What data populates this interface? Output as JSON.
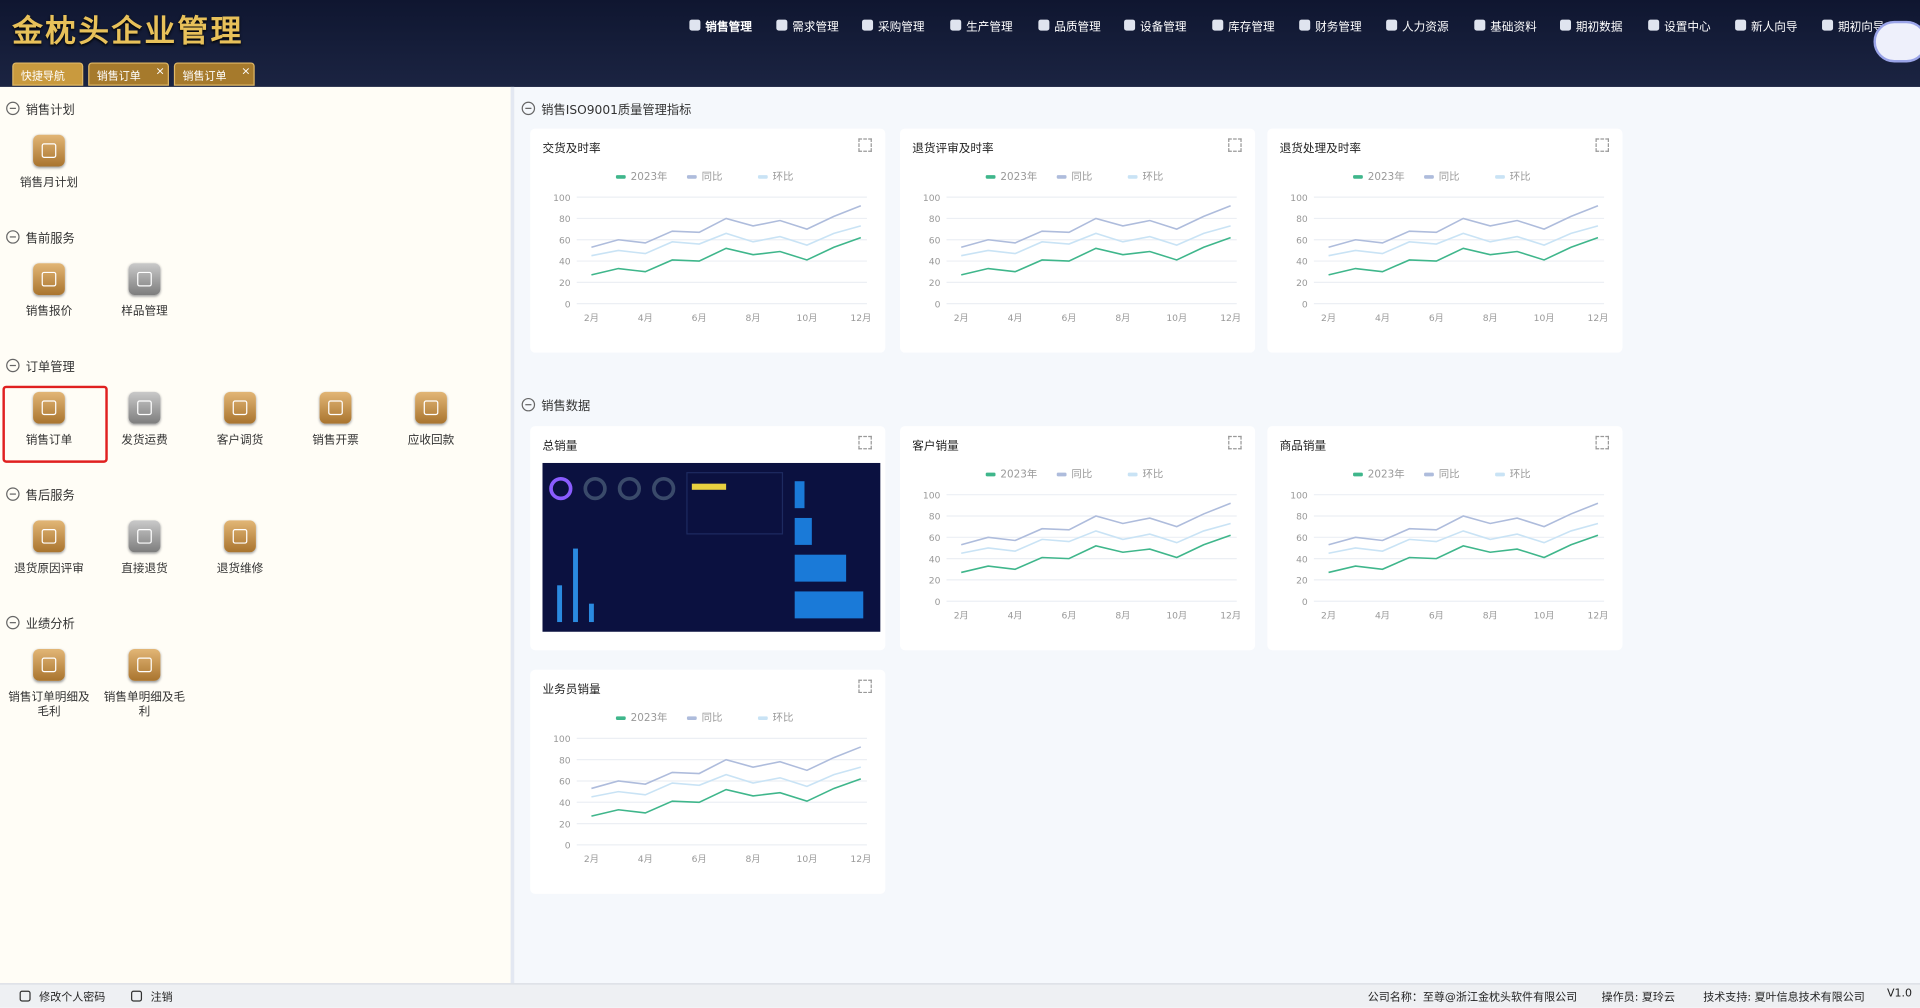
{
  "header": {
    "logo": "金枕头企业管理",
    "nav": [
      "销售管理",
      "需求管理",
      "采购管理",
      "生产管理",
      "品质管理",
      "设备管理",
      "库存管理",
      "财务管理",
      "人力资源",
      "基础资料",
      "期初数据",
      "设置中心",
      "新人向导",
      "期初向导"
    ]
  },
  "tabs": [
    "快捷导航",
    "销售订单",
    "销售订单"
  ],
  "sidebar": {
    "sections": [
      {
        "title": "销售计划",
        "items": [
          "销售月计划"
        ]
      },
      {
        "title": "售前服务",
        "items": [
          "销售报价",
          "样品管理"
        ]
      },
      {
        "title": "订单管理",
        "items": [
          "销售订单",
          "发货运费",
          "客户调货",
          "销售开票",
          "应收回款"
        ]
      },
      {
        "title": "售后服务",
        "items": [
          "退货原因评审",
          "直接退货",
          "退货维修"
        ]
      },
      {
        "title": "业绩分析",
        "items": [
          "销售订单明细及毛利",
          "销售单明细及毛利"
        ]
      }
    ]
  },
  "main": {
    "sections": [
      "销售ISO9001质量管理指标",
      "销售数据"
    ],
    "dashboard_title": "总销量"
  },
  "chart_data": [
    {
      "type": "line",
      "title": "交货及时率",
      "categories": [
        "2月",
        null,
        "4月",
        null,
        "6月",
        null,
        "8月",
        null,
        "10月",
        null,
        "12月"
      ],
      "ylim": [
        0,
        100
      ],
      "yticks": [
        0,
        20,
        40,
        60,
        80,
        100
      ],
      "grid": true,
      "series": [
        {
          "name": "2023年",
          "color": "#3fb68b",
          "values": [
            27,
            33,
            30,
            41,
            40,
            52,
            46,
            49,
            41,
            53,
            62
          ]
        },
        {
          "name": "同比",
          "color": "#aebcdc",
          "values": [
            53,
            60,
            57,
            68,
            67,
            80,
            73,
            78,
            70,
            82,
            92
          ]
        },
        {
          "name": "环比",
          "color": "#c9e3f5",
          "values": [
            45,
            50,
            47,
            58,
            56,
            66,
            58,
            63,
            55,
            66,
            73
          ]
        }
      ]
    },
    {
      "type": "line",
      "title": "退货评审及时率",
      "categories": [
        "2月",
        null,
        "4月",
        null,
        "6月",
        null,
        "8月",
        null,
        "10月",
        null,
        "12月"
      ],
      "ylim": [
        0,
        100
      ],
      "yticks": [
        0,
        20,
        40,
        60,
        80,
        100
      ],
      "grid": true,
      "series": [
        {
          "name": "2023年",
          "color": "#3fb68b",
          "values": [
            27,
            33,
            30,
            41,
            40,
            52,
            46,
            49,
            41,
            53,
            62
          ]
        },
        {
          "name": "同比",
          "color": "#aebcdc",
          "values": [
            53,
            60,
            57,
            68,
            67,
            80,
            73,
            78,
            70,
            82,
            92
          ]
        },
        {
          "name": "环比",
          "color": "#c9e3f5",
          "values": [
            45,
            50,
            47,
            58,
            56,
            66,
            58,
            63,
            55,
            66,
            73
          ]
        }
      ]
    },
    {
      "type": "line",
      "title": "退货处理及时率",
      "categories": [
        "2月",
        null,
        "4月",
        null,
        "6月",
        null,
        "8月",
        null,
        "10月",
        null,
        "12月"
      ],
      "ylim": [
        0,
        100
      ],
      "yticks": [
        0,
        20,
        40,
        60,
        80,
        100
      ],
      "grid": true,
      "series": [
        {
          "name": "2023年",
          "color": "#3fb68b",
          "values": [
            27,
            33,
            30,
            41,
            40,
            52,
            46,
            49,
            41,
            53,
            62
          ]
        },
        {
          "name": "同比",
          "color": "#aebcdc",
          "values": [
            53,
            60,
            57,
            68,
            67,
            80,
            73,
            78,
            70,
            82,
            92
          ]
        },
        {
          "name": "环比",
          "color": "#c9e3f5",
          "values": [
            45,
            50,
            47,
            58,
            56,
            66,
            58,
            63,
            55,
            66,
            73
          ]
        }
      ]
    },
    {
      "type": "line",
      "title": "客户销量",
      "categories": [
        "2月",
        null,
        "4月",
        null,
        "6月",
        null,
        "8月",
        null,
        "10月",
        null,
        "12月"
      ],
      "ylim": [
        0,
        100
      ],
      "yticks": [
        0,
        20,
        40,
        60,
        80,
        100
      ],
      "grid": true,
      "series": [
        {
          "name": "2023年",
          "color": "#3fb68b",
          "values": [
            27,
            33,
            30,
            41,
            40,
            52,
            46,
            49,
            41,
            53,
            62
          ]
        },
        {
          "name": "同比",
          "color": "#aebcdc",
          "values": [
            53,
            60,
            57,
            68,
            67,
            80,
            73,
            78,
            70,
            82,
            92
          ]
        },
        {
          "name": "环比",
          "color": "#c9e3f5",
          "values": [
            45,
            50,
            47,
            58,
            56,
            66,
            58,
            63,
            55,
            66,
            73
          ]
        }
      ]
    },
    {
      "type": "line",
      "title": "商品销量",
      "categories": [
        "2月",
        null,
        "4月",
        null,
        "6月",
        null,
        "8月",
        null,
        "10月",
        null,
        "12月"
      ],
      "ylim": [
        0,
        100
      ],
      "yticks": [
        0,
        20,
        40,
        60,
        80,
        100
      ],
      "grid": true,
      "series": [
        {
          "name": "2023年",
          "color": "#3fb68b",
          "values": [
            27,
            33,
            30,
            41,
            40,
            52,
            46,
            49,
            41,
            53,
            62
          ]
        },
        {
          "name": "同比",
          "color": "#aebcdc",
          "values": [
            53,
            60,
            57,
            68,
            67,
            80,
            73,
            78,
            70,
            82,
            92
          ]
        },
        {
          "name": "环比",
          "color": "#c9e3f5",
          "values": [
            45,
            50,
            47,
            58,
            56,
            66,
            58,
            63,
            55,
            66,
            73
          ]
        }
      ]
    },
    {
      "type": "line",
      "title": "业务员销量",
      "categories": [
        "2月",
        null,
        "4月",
        null,
        "6月",
        null,
        "8月",
        null,
        "10月",
        null,
        "12月"
      ],
      "ylim": [
        0,
        100
      ],
      "yticks": [
        0,
        20,
        40,
        60,
        80,
        100
      ],
      "grid": true,
      "series": [
        {
          "name": "2023年",
          "color": "#3fb68b",
          "values": [
            27,
            33,
            30,
            41,
            40,
            52,
            46,
            49,
            41,
            53,
            62
          ]
        },
        {
          "name": "同比",
          "color": "#aebcdc",
          "values": [
            53,
            60,
            57,
            68,
            67,
            80,
            73,
            78,
            70,
            82,
            92
          ]
        },
        {
          "name": "环比",
          "color": "#c9e3f5",
          "values": [
            45,
            50,
            47,
            58,
            56,
            66,
            58,
            63,
            55,
            66,
            73
          ]
        }
      ]
    }
  ],
  "footer": {
    "left": [
      "修改个人密码",
      "注销"
    ],
    "right": [
      "公司名称：至尊@浙江金枕头软件有限公司",
      "操作员: 夏玲云",
      "技术支持: 夏叶信息技术有限公司",
      "V1.0"
    ]
  }
}
